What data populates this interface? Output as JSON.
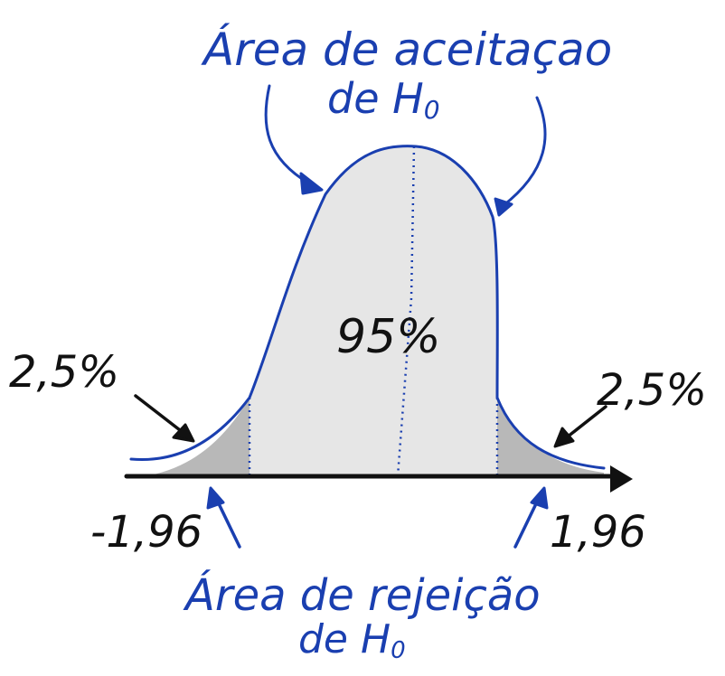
{
  "labels": {
    "acceptance_title_line1": "Área de aceitaçao",
    "acceptance_title_line2": "de H",
    "acceptance_title_sub": "0",
    "rejection_title_line1": "Área de rejeição",
    "rejection_title_line2": "de H",
    "rejection_title_sub": "0",
    "center_percent": "95%",
    "left_tail_percent": "2,5%",
    "right_tail_percent": "2,5%",
    "left_critical_value": "-1,96",
    "right_critical_value": "1,96"
  },
  "colors": {
    "ink_blue": "#1a3fb0",
    "ink_black": "#111111",
    "acceptance_fill": "#e6e6e6",
    "rejection_fill": "#b8b8b8"
  }
}
